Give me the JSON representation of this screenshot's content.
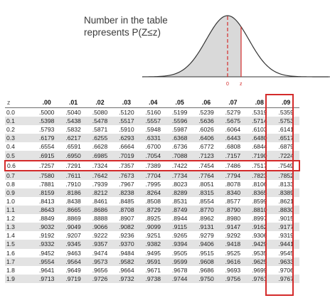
{
  "caption": {
    "line1": "Number in the table",
    "line2": "represents P(Z≤z)"
  },
  "curve": {
    "mean_label": "0",
    "z_label": "z",
    "accent_color": "#d42b2b",
    "fill_color": "#d9d9d9"
  },
  "table": {
    "z_header": "z",
    "columns": [
      ".00",
      ".01",
      ".02",
      ".03",
      ".04",
      ".05",
      ".06",
      ".07",
      ".08",
      ".09"
    ],
    "highlight_column": ".08",
    "highlight_row": "0.6",
    "rows": [
      {
        "z": "0.0",
        "values": [
          ".5000",
          ".5040",
          ".5080",
          ".5120",
          ".5160",
          ".5199",
          ".5239",
          ".5279",
          ".5319",
          ".5359"
        ]
      },
      {
        "z": "0.1",
        "values": [
          ".5398",
          ".5438",
          ".5478",
          ".5517",
          ".5557",
          ".5596",
          ".5636",
          ".5675",
          ".5714",
          ".5753"
        ]
      },
      {
        "z": "0.2",
        "values": [
          ".5793",
          ".5832",
          ".5871",
          ".5910",
          ".5948",
          ".5987",
          ".6026",
          ".6064",
          ".6103",
          ".6141"
        ]
      },
      {
        "z": "0.3",
        "values": [
          ".6179",
          ".6217",
          ".6255",
          ".6293",
          ".6331",
          ".6368",
          ".6406",
          ".6443",
          ".6480",
          ".6517"
        ]
      },
      {
        "z": "0.4",
        "values": [
          ".6554",
          ".6591",
          ".6628",
          ".6664",
          ".6700",
          ".6736",
          ".6772",
          ".6808",
          ".6844",
          ".6879"
        ]
      },
      {
        "z": "0.5",
        "values": [
          ".6915",
          ".6950",
          ".6985",
          ".7019",
          ".7054",
          ".7088",
          ".7123",
          ".7157",
          ".7190",
          ".7224"
        ]
      },
      {
        "z": "0.6",
        "values": [
          ".7257",
          ".7291",
          ".7324",
          ".7357",
          ".7389",
          ".7422",
          ".7454",
          ".7486",
          ".7517",
          ".7549"
        ]
      },
      {
        "z": "0.7",
        "values": [
          ".7580",
          ".7611",
          ".7642",
          ".7673",
          ".7704",
          ".7734",
          ".7764",
          ".7794",
          ".7823",
          ".7852"
        ]
      },
      {
        "z": "0.8",
        "values": [
          ".7881",
          ".7910",
          ".7939",
          ".7967",
          ".7995",
          ".8023",
          ".8051",
          ".8078",
          ".8106",
          ".8133"
        ]
      },
      {
        "z": "0.9",
        "values": [
          ".8159",
          ".8186",
          ".8212",
          ".8238",
          ".8264",
          ".8289",
          ".8315",
          ".8340",
          ".8365",
          ".8389"
        ]
      },
      {
        "z": "1.0",
        "values": [
          ".8413",
          ".8438",
          ".8461",
          ".8485",
          ".8508",
          ".8531",
          ".8554",
          ".8577",
          ".8599",
          ".8621"
        ]
      },
      {
        "z": "1.1",
        "values": [
          ".8643",
          ".8665",
          ".8686",
          ".8708",
          ".8729",
          ".8749",
          ".8770",
          ".8790",
          ".8810",
          ".8830"
        ]
      },
      {
        "z": "1.2",
        "values": [
          ".8849",
          ".8869",
          ".8888",
          ".8907",
          ".8925",
          ".8944",
          ".8962",
          ".8980",
          ".8997",
          ".9015"
        ]
      },
      {
        "z": "1.3",
        "values": [
          ".9032",
          ".9049",
          ".9066",
          ".9082",
          ".9099",
          ".9115",
          ".9131",
          ".9147",
          ".9162",
          ".9177"
        ]
      },
      {
        "z": "1.4",
        "values": [
          ".9192",
          ".9207",
          ".9222",
          ".9236",
          ".9251",
          ".9265",
          ".9279",
          ".9292",
          ".9306",
          ".9319"
        ]
      },
      {
        "z": "1.5",
        "values": [
          ".9332",
          ".9345",
          ".9357",
          ".9370",
          ".9382",
          ".9394",
          ".9406",
          ".9418",
          ".9429",
          ".9441"
        ]
      },
      {
        "z": "1.6",
        "values": [
          ".9452",
          ".9463",
          ".9474",
          ".9484",
          ".9495",
          ".9505",
          ".9515",
          ".9525",
          ".9535",
          ".9545"
        ]
      },
      {
        "z": "1.7",
        "values": [
          ".9554",
          ".9564",
          ".9573",
          ".9582",
          ".9591",
          ".9599",
          ".9608",
          ".9616",
          ".9625",
          ".9633"
        ]
      },
      {
        "z": "1.8",
        "values": [
          ".9641",
          ".9649",
          ".9656",
          ".9664",
          ".9671",
          ".9678",
          ".9686",
          ".9693",
          ".9699",
          ".9706"
        ]
      },
      {
        "z": "1.9",
        "values": [
          ".9713",
          ".9719",
          ".9726",
          ".9732",
          ".9738",
          ".9744",
          ".9750",
          ".9756",
          ".9761",
          ".9767"
        ]
      }
    ]
  }
}
